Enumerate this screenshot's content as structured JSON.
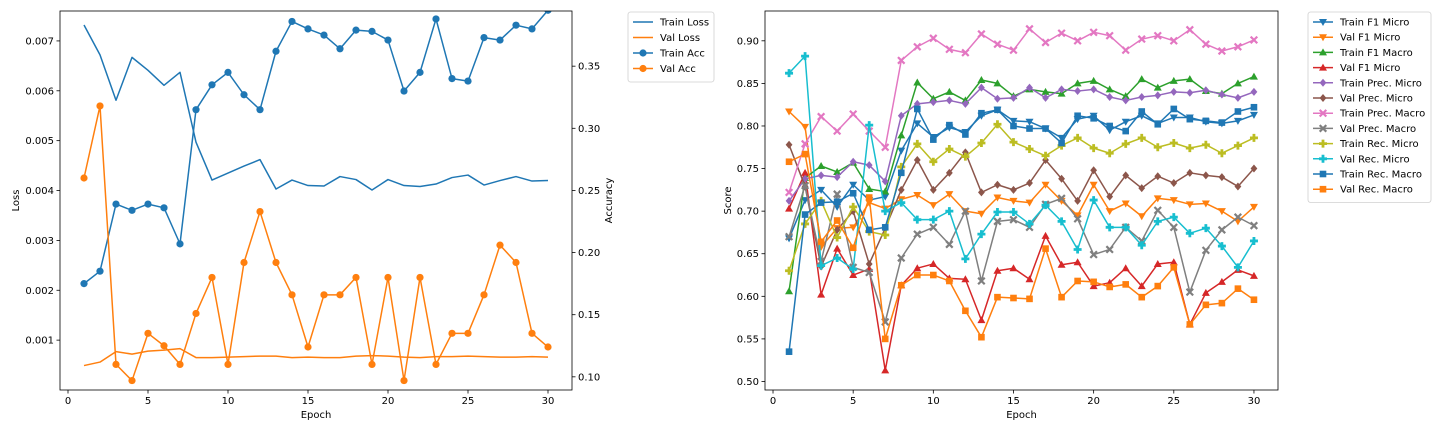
{
  "colors": {
    "blue": "#1f77b4",
    "orange": "#ff7f0e",
    "green": "#2ca02c",
    "red": "#d62728",
    "purple": "#9467bd",
    "brown": "#8c564b",
    "pink": "#e377c2",
    "gray": "#7f7f7f",
    "olive": "#bcbd22",
    "cyan": "#17becf"
  },
  "chart_data": [
    {
      "type": "line",
      "xlabel": "Epoch",
      "ylabel": "Loss",
      "y2label": "Accuracy",
      "xlim": [
        -0.5,
        31.5
      ],
      "ylim": [
        0,
        0.0076
      ],
      "y2lim": [
        0.0894,
        0.3944
      ],
      "xticks": [
        0,
        5,
        10,
        15,
        20,
        25,
        30
      ],
      "yticks": [
        0.001,
        0.002,
        0.003,
        0.004,
        0.005,
        0.006,
        0.007
      ],
      "ytick_labels": [
        "0.001",
        "0.002",
        "0.003",
        "0.004",
        "0.005",
        "0.006",
        "0.007"
      ],
      "y2ticks": [
        0.1,
        0.15,
        0.2,
        0.25,
        0.3,
        0.35
      ],
      "y2tick_labels": [
        "0.10",
        "0.15",
        "0.20",
        "0.25",
        "0.30",
        "0.35"
      ],
      "grid": false,
      "legend": "outside right, top",
      "x": [
        1,
        2,
        3,
        4,
        5,
        6,
        7,
        8,
        9,
        10,
        11,
        12,
        13,
        14,
        15,
        16,
        17,
        18,
        19,
        20,
        21,
        22,
        23,
        24,
        25,
        26,
        27,
        28,
        29,
        30
      ],
      "series": [
        {
          "name": "Train Loss",
          "axis": "left",
          "color": "blue",
          "marker": "none",
          "values": [
            0.00732,
            0.00672,
            0.00581,
            0.00667,
            0.00641,
            0.00611,
            0.00637,
            0.00497,
            0.00421,
            0.00435,
            0.00449,
            0.00462,
            0.00403,
            0.00421,
            0.0041,
            0.00409,
            0.00428,
            0.00422,
            0.00401,
            0.00422,
            0.0041,
            0.00408,
            0.00413,
            0.00426,
            0.00431,
            0.00411,
            0.0042,
            0.00428,
            0.00419,
            0.0042
          ]
        },
        {
          "name": "Val Loss",
          "axis": "left",
          "color": "orange",
          "marker": "none",
          "values": [
            0.00049,
            0.00056,
            0.00077,
            0.00072,
            0.00078,
            0.0008,
            0.00083,
            0.00065,
            0.00065,
            0.00066,
            0.00067,
            0.00068,
            0.00068,
            0.00065,
            0.00066,
            0.00065,
            0.00065,
            0.00068,
            0.00069,
            0.00068,
            0.00066,
            0.00065,
            0.00067,
            0.00067,
            0.00068,
            0.00067,
            0.00066,
            0.00066,
            0.00067,
            0.00066
          ]
        },
        {
          "name": "Train Acc",
          "axis": "right",
          "color": "blue",
          "marker": "o",
          "values": [
            0.175,
            0.185,
            0.239,
            0.234,
            0.239,
            0.236,
            0.207,
            0.315,
            0.335,
            0.345,
            0.327,
            0.315,
            0.362,
            0.386,
            0.38,
            0.375,
            0.364,
            0.379,
            0.378,
            0.371,
            0.33,
            0.345,
            0.388,
            0.34,
            0.338,
            0.373,
            0.371,
            0.383,
            0.38,
            0.395
          ]
        },
        {
          "name": "Val Acc",
          "axis": "right",
          "color": "orange",
          "marker": "o",
          "values": [
            0.26,
            0.318,
            0.11,
            0.097,
            0.135,
            0.125,
            0.11,
            0.151,
            0.18,
            0.11,
            0.192,
            0.233,
            0.192,
            0.166,
            0.124,
            0.166,
            0.166,
            0.18,
            0.11,
            0.18,
            0.097,
            0.18,
            0.11,
            0.135,
            0.135,
            0.166,
            0.206,
            0.192,
            0.135,
            0.124
          ]
        }
      ]
    },
    {
      "type": "line",
      "xlabel": "Epoch",
      "ylabel": "Score",
      "xlim": [
        -0.5,
        31.5
      ],
      "ylim": [
        0.49,
        0.935
      ],
      "xticks": [
        0,
        5,
        10,
        15,
        20,
        25,
        30
      ],
      "yticks": [
        0.5,
        0.55,
        0.6,
        0.65,
        0.7,
        0.75,
        0.8,
        0.85,
        0.9
      ],
      "ytick_labels": [
        "0.50",
        "0.55",
        "0.60",
        "0.65",
        "0.70",
        "0.75",
        "0.80",
        "0.85",
        "0.90"
      ],
      "grid": false,
      "legend": "outside right, top",
      "x": [
        1,
        2,
        3,
        4,
        5,
        6,
        7,
        8,
        9,
        10,
        11,
        12,
        13,
        14,
        15,
        16,
        17,
        18,
        19,
        20,
        21,
        22,
        23,
        24,
        25,
        26,
        27,
        28,
        29,
        30
      ],
      "series": [
        {
          "name": "Train F1 Micro",
          "color": "blue",
          "marker": "v",
          "values": [
            0.668,
            0.713,
            0.725,
            0.705,
            0.731,
            0.713,
            0.717,
            0.771,
            0.803,
            0.787,
            0.798,
            0.793,
            0.812,
            0.819,
            0.806,
            0.805,
            0.797,
            0.786,
            0.808,
            0.812,
            0.795,
            0.805,
            0.812,
            0.803,
            0.81,
            0.81,
            0.805,
            0.803,
            0.806,
            0.813
          ]
        },
        {
          "name": "Val F1 Micro",
          "color": "orange",
          "marker": "v",
          "values": [
            0.817,
            0.799,
            0.658,
            0.68,
            0.681,
            0.71,
            0.703,
            0.714,
            0.719,
            0.707,
            0.72,
            0.7,
            0.697,
            0.716,
            0.712,
            0.71,
            0.731,
            0.712,
            0.695,
            0.731,
            0.7,
            0.709,
            0.694,
            0.715,
            0.713,
            0.708,
            0.709,
            0.7,
            0.688,
            0.705
          ]
        },
        {
          "name": "Train F1 Macro",
          "color": "green",
          "marker": "^",
          "values": [
            0.606,
            0.739,
            0.753,
            0.746,
            0.757,
            0.726,
            0.723,
            0.789,
            0.851,
            0.832,
            0.84,
            0.83,
            0.854,
            0.85,
            0.835,
            0.843,
            0.84,
            0.838,
            0.85,
            0.853,
            0.843,
            0.835,
            0.855,
            0.845,
            0.853,
            0.855,
            0.841,
            0.838,
            0.85,
            0.858
          ]
        },
        {
          "name": "Val F1 Micro",
          "color": "red",
          "marker": "^",
          "values": [
            0.703,
            0.745,
            0.602,
            0.656,
            0.625,
            0.632,
            0.513,
            0.613,
            0.633,
            0.638,
            0.621,
            0.62,
            0.572,
            0.63,
            0.633,
            0.62,
            0.671,
            0.637,
            0.64,
            0.612,
            0.616,
            0.633,
            0.612,
            0.638,
            0.64,
            0.567,
            0.604,
            0.617,
            0.631,
            0.624
          ]
        },
        {
          "name": "Train Prec. Micro",
          "color": "purple",
          "marker": "D",
          "values": [
            0.712,
            0.738,
            0.742,
            0.74,
            0.758,
            0.754,
            0.735,
            0.812,
            0.826,
            0.828,
            0.83,
            0.826,
            0.845,
            0.832,
            0.833,
            0.845,
            0.833,
            0.843,
            0.841,
            0.843,
            0.834,
            0.83,
            0.834,
            0.836,
            0.84,
            0.839,
            0.842,
            0.837,
            0.833,
            0.84
          ]
        },
        {
          "name": "Val Prec. Micro",
          "color": "brown",
          "marker": "D",
          "values": [
            0.778,
            0.729,
            0.635,
            0.678,
            0.7,
            0.638,
            0.68,
            0.725,
            0.76,
            0.725,
            0.745,
            0.769,
            0.722,
            0.731,
            0.725,
            0.733,
            0.76,
            0.738,
            0.712,
            0.748,
            0.717,
            0.742,
            0.727,
            0.741,
            0.733,
            0.745,
            0.742,
            0.74,
            0.729,
            0.75
          ]
        },
        {
          "name": "Train Prec. Macro",
          "color": "pink",
          "marker": "x",
          "values": [
            0.722,
            0.779,
            0.811,
            0.794,
            0.814,
            0.794,
            0.775,
            0.877,
            0.893,
            0.903,
            0.89,
            0.886,
            0.908,
            0.896,
            0.889,
            0.914,
            0.898,
            0.909,
            0.9,
            0.91,
            0.906,
            0.889,
            0.902,
            0.906,
            0.9,
            0.913,
            0.896,
            0.888,
            0.893,
            0.901
          ]
        },
        {
          "name": "Val Prec. Macro",
          "color": "gray",
          "marker": "x",
          "values": [
            0.67,
            0.73,
            0.641,
            0.72,
            0.634,
            0.628,
            0.57,
            0.645,
            0.673,
            0.681,
            0.661,
            0.7,
            0.618,
            0.688,
            0.69,
            0.681,
            0.708,
            0.715,
            0.691,
            0.649,
            0.655,
            0.681,
            0.665,
            0.701,
            0.681,
            0.605,
            0.654,
            0.678,
            0.693,
            0.683
          ]
        },
        {
          "name": "Train Rec. Micro",
          "color": "olive",
          "marker": "P",
          "values": [
            0.63,
            0.685,
            0.712,
            0.669,
            0.705,
            0.676,
            0.672,
            0.752,
            0.779,
            0.758,
            0.773,
            0.764,
            0.78,
            0.802,
            0.781,
            0.773,
            0.765,
            0.777,
            0.786,
            0.774,
            0.768,
            0.779,
            0.786,
            0.775,
            0.78,
            0.774,
            0.778,
            0.768,
            0.777,
            0.786
          ]
        },
        {
          "name": "Val Rec. Micro",
          "color": "cyan",
          "marker": "P",
          "values": [
            0.862,
            0.882,
            0.636,
            0.645,
            0.632,
            0.801,
            0.7,
            0.71,
            0.69,
            0.69,
            0.7,
            0.644,
            0.673,
            0.699,
            0.699,
            0.685,
            0.707,
            0.688,
            0.655,
            0.713,
            0.681,
            0.681,
            0.66,
            0.688,
            0.693,
            0.674,
            0.68,
            0.659,
            0.634,
            0.665
          ]
        },
        {
          "name": "Train Rec. Macro",
          "color": "blue",
          "marker": "s",
          "values": [
            0.535,
            0.696,
            0.71,
            0.711,
            0.721,
            0.678,
            0.681,
            0.745,
            0.82,
            0.784,
            0.801,
            0.79,
            0.815,
            0.819,
            0.8,
            0.797,
            0.797,
            0.78,
            0.812,
            0.809,
            0.8,
            0.794,
            0.817,
            0.802,
            0.82,
            0.808,
            0.806,
            0.804,
            0.817,
            0.822
          ]
        },
        {
          "name": "Val Rec. Macro",
          "color": "orange",
          "marker": "s",
          "values": [
            0.758,
            0.767,
            0.664,
            0.689,
            0.657,
            0.716,
            0.55,
            0.613,
            0.625,
            0.625,
            0.618,
            0.583,
            0.552,
            0.599,
            0.598,
            0.597,
            0.656,
            0.599,
            0.618,
            0.617,
            0.611,
            0.614,
            0.599,
            0.612,
            0.634,
            0.567,
            0.59,
            0.592,
            0.609,
            0.596
          ]
        }
      ]
    }
  ]
}
